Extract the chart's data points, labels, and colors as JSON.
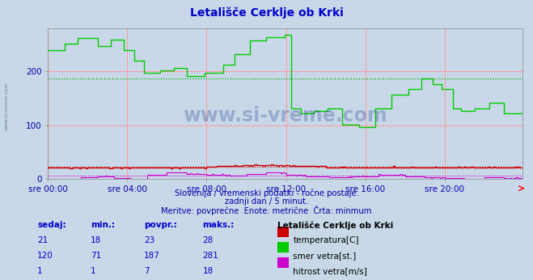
{
  "title": "Letališče Cerklje ob Krki",
  "title_color": "#0000cc",
  "bg_color": "#c8d8e8",
  "plot_bg_color": "#c8d8e8",
  "grid_color_major": "#ff9999",
  "grid_color_minor": "#aaaacc",
  "watermark_text": "www.si-vreme.com",
  "watermark_color": "#1a3a8a",
  "side_text": "www.si-vreme.com",
  "xlabel_color": "#0000aa",
  "ylabel_color": "#0000aa",
  "subtitle1": "Slovenija / vremenski podatki - ročne postaje.",
  "subtitle2": "zadnji dan / 5 minut.",
  "subtitle3": "Meritve: povprečne  Enote: metrične  Črta: minmum",
  "subtitle_color": "#0000aa",
  "n_points": 288,
  "xlim": [
    0,
    287
  ],
  "ylim": [
    0,
    281
  ],
  "yticks": [
    0,
    100,
    200
  ],
  "xtick_labels": [
    "sre 00:00",
    "sre 04:00",
    "sre 08:00",
    "sre 12:00",
    "sre 16:00",
    "sre 20:00"
  ],
  "xtick_positions": [
    0,
    48,
    96,
    144,
    192,
    240
  ],
  "temp_color": "#cc0000",
  "wind_dir_color": "#00cc00",
  "wind_speed_color": "#cc00cc",
  "avg_temp_color": "#cc0000",
  "avg_wind_dir_color": "#00aa00",
  "avg_wind_speed_color": "#cc00cc",
  "legend_items": [
    {
      "label": "temperatura[C]",
      "color": "#cc0000"
    },
    {
      "label": "smer vetra[st.]",
      "color": "#00cc00"
    },
    {
      "label": "hitrost vetra[m/s]",
      "color": "#cc00cc"
    }
  ],
  "table_headers": [
    "sedaj:",
    "min.:",
    "povpr.:",
    "maks.:"
  ],
  "table_data": [
    [
      21,
      18,
      23,
      28
    ],
    [
      120,
      71,
      187,
      281
    ],
    [
      1,
      1,
      7,
      18
    ]
  ],
  "table_color": "#0000cc",
  "table_header_color": "#0000cc",
  "station_label": "Letališče Cerklje ob Krki",
  "station_label_color": "#000000"
}
